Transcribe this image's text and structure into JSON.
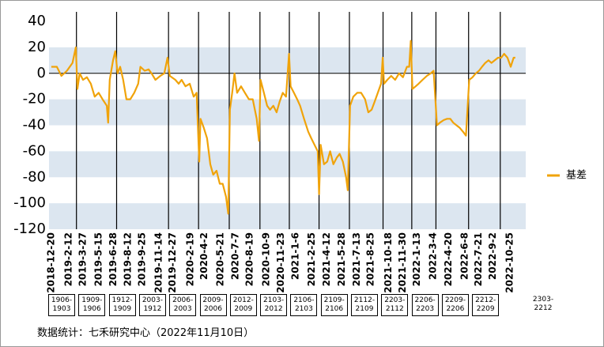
{
  "chart_data": {
    "type": "line",
    "series": [
      {
        "name": "基差",
        "color": "#f0a30a",
        "x": [
          "2018-12-20",
          "2019-1-6",
          "2019-1-20",
          "2019-2-6",
          "2019-2-23",
          "2019-3-5",
          "2019-3-10",
          "2019-3-17",
          "2019-3-27",
          "2019-4-8",
          "2019-4-20",
          "2019-5-2",
          "2019-5-14",
          "2019-5-26",
          "2019-6-8",
          "2019-6-12",
          "2019-6-17",
          "2019-6-27",
          "2019-7-4",
          "2019-7-11",
          "2019-7-19",
          "2019-7-28",
          "2019-8-7",
          "2019-8-19",
          "2019-8-31",
          "2019-9-12",
          "2019-9-19",
          "2019-10-2",
          "2019-10-14",
          "2019-10-23",
          "2019-11-4",
          "2019-11-19",
          "2019-12-1",
          "2019-12-11",
          "2019-12-18",
          "2020-1-4",
          "2020-1-14",
          "2020-1-23",
          "2020-2-4",
          "2020-2-17",
          "2020-2-29",
          "2020-3-9",
          "2020-3-17",
          "2020-3-21",
          "2020-3-31",
          "2020-4-10",
          "2020-4-20",
          "2020-4-29",
          "2020-5-9",
          "2020-5-19",
          "2020-5-28",
          "2020-6-7",
          "2020-6-14",
          "2020-6-19",
          "2020-6-26",
          "2020-7-3",
          "2020-7-11",
          "2020-7-23",
          "2020-8-4",
          "2020-8-16",
          "2020-8-28",
          "2020-9-9",
          "2020-9-16",
          "2020-9-21",
          "2020-10-1",
          "2020-10-11",
          "2020-10-20",
          "2020-10-30",
          "2020-11-9",
          "2020-11-18",
          "2020-11-28",
          "2020-12-8",
          "2020-12-17",
          "2020-12-22",
          "2021-1-1",
          "2021-1-11",
          "2021-1-20",
          "2021-2-1",
          "2021-2-14",
          "2021-2-23",
          "2021-3-5",
          "2021-3-15",
          "2021-3-19",
          "2021-3-24",
          "2021-4-3",
          "2021-4-13",
          "2021-4-22",
          "2021-5-2",
          "2021-5-12",
          "2021-5-21",
          "2021-5-31",
          "2021-6-10",
          "2021-6-15",
          "2021-6-22",
          "2021-7-2",
          "2021-7-14",
          "2021-7-26",
          "2021-8-7",
          "2021-8-17",
          "2021-8-27",
          "2021-9-5",
          "2021-9-15",
          "2021-9-25",
          "2021-9-30",
          "2021-10-4",
          "2021-10-14",
          "2021-10-26",
          "2021-11-7",
          "2021-11-19",
          "2021-12-1",
          "2021-12-13",
          "2021-12-20",
          "2021-12-25",
          "2021-12-30",
          "2022-1-9",
          "2022-1-18",
          "2022-1-30",
          "2022-2-12",
          "2022-2-24",
          "2022-3-5",
          "2022-3-15",
          "2022-3-24",
          "2022-4-5",
          "2022-4-15",
          "2022-4-25",
          "2022-5-4",
          "2022-5-14",
          "2022-5-24",
          "2022-6-3",
          "2022-6-12",
          "2022-6-22",
          "2022-7-2",
          "2022-7-12",
          "2022-7-22",
          "2022-7-31",
          "2022-8-10",
          "2022-8-20",
          "2022-8-29",
          "2022-9-8",
          "2022-9-18",
          "2022-9-28",
          "2022-10-7",
          "2022-10-17",
          "2022-10-27",
          "2022-11-5",
          "2022-11-10"
        ],
        "values": [
          5,
          5,
          -2,
          2,
          8,
          20,
          -12,
          0,
          -5,
          -3,
          -8,
          -18,
          -15,
          -20,
          -25,
          -38,
          -5,
          10,
          17,
          0,
          5,
          -5,
          -20,
          -20,
          -15,
          -8,
          5,
          2,
          3,
          0,
          -5,
          -2,
          0,
          12,
          -2,
          -5,
          -8,
          -5,
          -10,
          -8,
          -18,
          -15,
          -68,
          -35,
          -42,
          -50,
          -70,
          -78,
          -75,
          -85,
          -85,
          -95,
          -108,
          -28,
          -15,
          0,
          -15,
          -10,
          -15,
          -20,
          -20,
          -35,
          -52,
          -5,
          -15,
          -25,
          -28,
          -25,
          -30,
          -22,
          -15,
          -18,
          15,
          -10,
          -15,
          -20,
          -25,
          -35,
          -45,
          -50,
          -55,
          -60,
          -93,
          -55,
          -70,
          -68,
          -60,
          -70,
          -65,
          -62,
          -68,
          -80,
          -90,
          -25,
          -18,
          -15,
          -15,
          -20,
          -30,
          -28,
          -22,
          -15,
          -8,
          12,
          -8,
          -5,
          -2,
          -5,
          0,
          -3,
          5,
          5,
          25,
          -12,
          -10,
          -8,
          -5,
          -2,
          0,
          2,
          -40,
          -38,
          -36,
          -35,
          -35,
          -38,
          -40,
          -42,
          -45,
          -48,
          -5,
          -3,
          0,
          2,
          5,
          8,
          10,
          8,
          10,
          12,
          12,
          15,
          12,
          5,
          12,
          12
        ]
      }
    ],
    "xlim": [
      "2018-12-13",
      "2022-12-12"
    ],
    "xticks": [
      "2018-12-20",
      "2019-2-12",
      "2019-3-27",
      "2019-5-15",
      "2019-6-28",
      "2019-8-12",
      "2019-9-25",
      "2019-11-14",
      "2019-12-27",
      "2020-2-19",
      "2020-4-2",
      "2020-5-21",
      "2020-7-7",
      "2020-8-19",
      "2020-10-9",
      "2020-11-23",
      "2021-1-6",
      "2021-2-25",
      "2021-4-12",
      "2021-5-28",
      "2021-7-13",
      "2021-8-25",
      "2021-10-18",
      "2021-11-30",
      "2022-1-13",
      "2022-3-4",
      "2022-4-20",
      "2022-6-8",
      "2022-7-21",
      "2022-9-2",
      "2022-10-25"
    ],
    "ylim": [
      -120,
      40
    ],
    "yticks": [
      -120,
      -100,
      -80,
      -60,
      -40,
      -20,
      0,
      20,
      40
    ],
    "bands": true,
    "legend": "right",
    "vertical_lines": [
      "2019-3-7",
      "2019-7-8",
      "2019-12-14",
      "2020-3-15",
      "2020-6-17",
      "2020-9-19",
      "2020-12-18",
      "2021-3-19",
      "2021-6-20",
      "2021-10-1",
      "2021-12-28",
      "2022-3-12",
      "2022-6-20",
      "2022-9-25"
    ],
    "contracts": [
      "1906-1903",
      "1909-1906",
      "1912-1909",
      "2003-1912",
      "2006-2003",
      "2009-2006",
      "2012-2009",
      "2103-2012",
      "2106-2103",
      "2109-2106",
      "2112-2109",
      "2203-2112",
      "2206-2203",
      "2209-2206",
      "2212-2209",
      "2303-2212"
    ],
    "source": "数据统计：七禾研究中心（2022年11月10日）"
  }
}
